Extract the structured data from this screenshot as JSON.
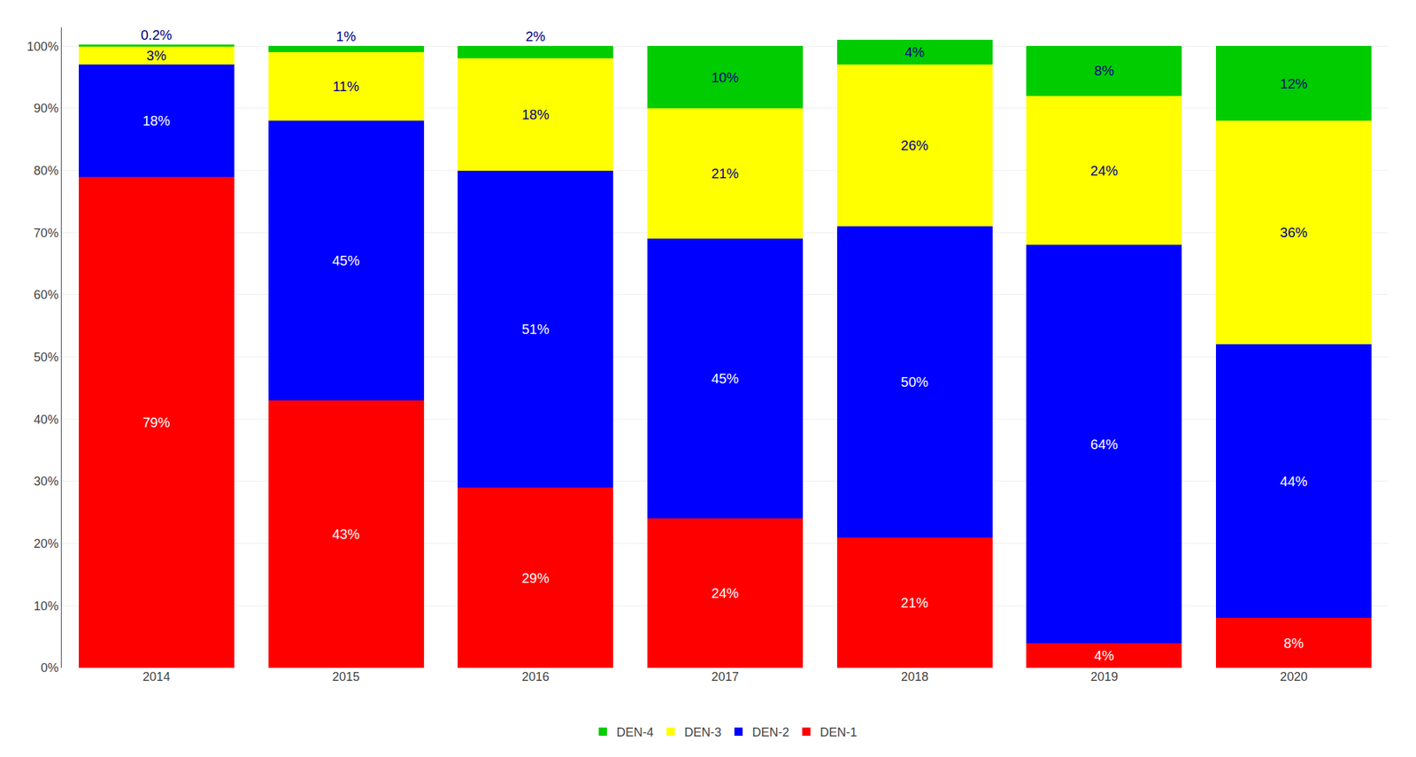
{
  "chart_data": {
    "type": "bar",
    "stacked": true,
    "data_labels": true,
    "grid": true,
    "legend": "bottom",
    "categories": [
      "2014",
      "2015",
      "2016",
      "2017",
      "2018",
      "2019",
      "2020"
    ],
    "series": [
      {
        "name": "DEN-1",
        "color": "#FF0000",
        "values": [
          79,
          43,
          29,
          24,
          21,
          4,
          8
        ],
        "value_labels": [
          "79%",
          "43%",
          "29%",
          "24%",
          "21%",
          "4%",
          "8%"
        ]
      },
      {
        "name": "DEN-2",
        "color": "#0000FF",
        "values": [
          18,
          45,
          51,
          45,
          50,
          64,
          44
        ],
        "value_labels": [
          "18%",
          "45%",
          "51%",
          "45%",
          "50%",
          "64%",
          "44%"
        ]
      },
      {
        "name": "DEN-3",
        "color": "#FFFF00",
        "values": [
          3,
          11,
          18,
          21,
          26,
          24,
          36
        ],
        "value_labels": [
          "3%",
          "11%",
          "18%",
          "21%",
          "26%",
          "24%",
          "36%"
        ]
      },
      {
        "name": "DEN-4",
        "color": "#00CC00",
        "values": [
          0.2,
          1,
          2,
          10,
          4,
          8,
          12
        ],
        "value_labels": [
          "0.2%",
          "1%",
          "2%",
          "10%",
          "4%",
          "8%",
          "12%"
        ]
      }
    ],
    "ylim": [
      0,
      103
    ],
    "yticks": [
      {
        "value": 0,
        "label": "0%"
      },
      {
        "value": 10,
        "label": "10%"
      },
      {
        "value": 20,
        "label": "20%"
      },
      {
        "value": 30,
        "label": "30%"
      },
      {
        "value": 40,
        "label": "40%"
      },
      {
        "value": 50,
        "label": "50%"
      },
      {
        "value": 60,
        "label": "60%"
      },
      {
        "value": 70,
        "label": "70%"
      },
      {
        "value": 80,
        "label": "80%"
      },
      {
        "value": 90,
        "label": "90%"
      },
      {
        "value": 100,
        "label": "100%"
      }
    ]
  }
}
